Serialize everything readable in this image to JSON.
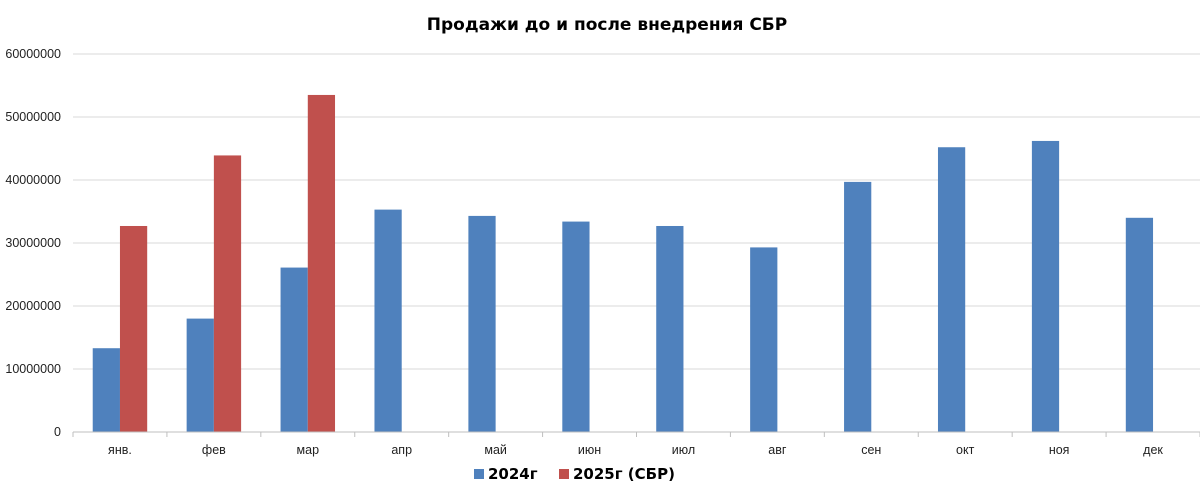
{
  "chart_data": {
    "type": "bar",
    "title": "Продажи до и после внедрения СБР",
    "xlabel": "",
    "ylabel": "",
    "categories": [
      "янв.",
      "фев",
      "мар",
      "апр",
      "май",
      "июн",
      "июл",
      "авг",
      "сен",
      "окт",
      "ноя",
      "дек"
    ],
    "series": [
      {
        "name": "2024г",
        "color": "#4f81bd",
        "values": [
          13300000,
          18000000,
          26100000,
          35300000,
          34300000,
          33400000,
          32700000,
          29300000,
          39700000,
          45200000,
          46200000,
          34000000
        ]
      },
      {
        "name": "2025г (СБР)",
        "color": "#c0504d",
        "values": [
          32700000,
          43900000,
          53500000,
          null,
          null,
          null,
          null,
          null,
          null,
          null,
          null,
          null
        ]
      }
    ],
    "ylim": [
      0,
      60000000
    ],
    "yticks": [
      "0",
      "10000000",
      "20000000",
      "30000000",
      "40000000",
      "50000000",
      "60000000"
    ],
    "grid": true,
    "legend": "bottom"
  }
}
